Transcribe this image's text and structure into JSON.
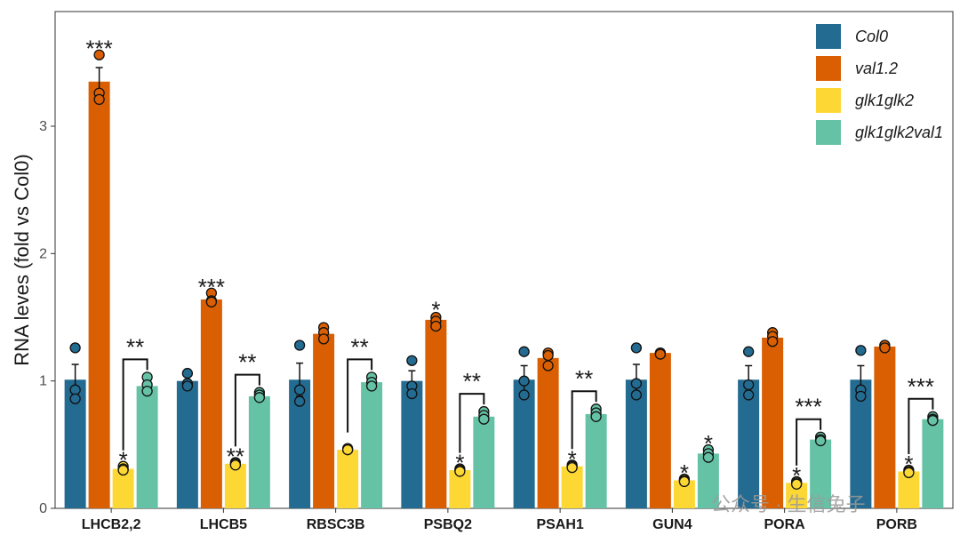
{
  "chart_data": {
    "type": "bar",
    "title": "",
    "xlabel": "",
    "ylabel": "RNA leves (fold vs Col0)",
    "ylim": [
      0,
      3.9
    ],
    "yticks": [
      "0",
      "1",
      "2",
      "3"
    ],
    "grid": false,
    "legend_position": "top-right",
    "categories": [
      "LHCB2,2",
      "LHCB5",
      "RBSC3B",
      "PSBQ2",
      "PSAH1",
      "GUN4",
      "PORA",
      "PORB"
    ],
    "series": [
      {
        "name": "Col0",
        "color": "#236B91",
        "values": [
          1.01,
          1.0,
          1.01,
          1.0,
          1.01,
          1.01,
          1.01,
          1.01
        ],
        "errors": [
          0.12,
          0.05,
          0.13,
          0.08,
          0.11,
          0.12,
          0.11,
          0.11
        ],
        "points": [
          [
            1.26,
            0.93,
            0.86
          ],
          [
            1.06,
            0.98,
            0.96
          ],
          [
            1.28,
            0.93,
            0.84
          ],
          [
            1.16,
            0.96,
            0.9
          ],
          [
            1.23,
            1.0,
            0.89
          ],
          [
            1.26,
            0.98,
            0.89
          ],
          [
            1.23,
            0.97,
            0.89
          ],
          [
            1.24,
            0.93,
            0.88
          ]
        ]
      },
      {
        "name": "val1.2",
        "color": "#D95F02",
        "values": [
          3.35,
          1.64,
          1.37,
          1.48,
          1.18,
          1.22,
          1.34,
          1.27
        ],
        "errors": [
          0.11,
          0.02,
          0.04,
          0.03,
          0.04,
          0.01,
          0.03,
          0.01
        ],
        "points": [
          [
            3.56,
            3.26,
            3.21
          ],
          [
            1.69,
            1.63,
            1.62
          ],
          [
            1.42,
            1.38,
            1.33
          ],
          [
            1.5,
            1.47,
            1.43
          ],
          [
            1.22,
            1.2,
            1.12
          ],
          [
            1.22,
            1.22,
            1.21
          ],
          [
            1.38,
            1.35,
            1.31
          ],
          [
            1.28,
            1.28,
            1.26
          ]
        ]
      },
      {
        "name": "glk1glk2",
        "color": "#FDD835",
        "values": [
          0.31,
          0.35,
          0.46,
          0.3,
          0.33,
          0.22,
          0.2,
          0.29
        ],
        "errors": [
          0.01,
          0.01,
          0.01,
          0.01,
          0.01,
          0.01,
          0.01,
          0.01
        ],
        "points": [
          [
            0.33,
            0.31,
            0.3
          ],
          [
            0.36,
            0.35,
            0.34
          ],
          [
            0.47,
            0.46,
            0.46
          ],
          [
            0.31,
            0.3,
            0.29
          ],
          [
            0.34,
            0.33,
            0.32
          ],
          [
            0.23,
            0.22,
            0.21
          ],
          [
            0.21,
            0.2,
            0.19
          ],
          [
            0.3,
            0.29,
            0.28
          ]
        ]
      },
      {
        "name": "glk1glk2val1",
        "color": "#66C2A5",
        "values": [
          0.96,
          0.88,
          0.99,
          0.72,
          0.74,
          0.43,
          0.54,
          0.7
        ],
        "errors": [
          0.03,
          0.02,
          0.02,
          0.02,
          0.02,
          0.02,
          0.01,
          0.01
        ],
        "points": [
          [
            1.03,
            0.97,
            0.92
          ],
          [
            0.91,
            0.89,
            0.87
          ],
          [
            1.03,
            0.99,
            0.96
          ],
          [
            0.76,
            0.73,
            0.7
          ],
          [
            0.78,
            0.75,
            0.72
          ],
          [
            0.46,
            0.43,
            0.4
          ],
          [
            0.56,
            0.54,
            0.53
          ],
          [
            0.72,
            0.7,
            0.69
          ]
        ]
      }
    ],
    "significance": [
      {
        "category": 0,
        "series": 1,
        "label": "***"
      },
      {
        "category": 0,
        "series": 2,
        "label": "*"
      },
      {
        "category": 0,
        "bracket": [
          2,
          3
        ],
        "label": "**"
      },
      {
        "category": 1,
        "series": 1,
        "label": "***"
      },
      {
        "category": 1,
        "series": 2,
        "label": "**"
      },
      {
        "category": 1,
        "bracket": [
          2,
          3
        ],
        "label": "**"
      },
      {
        "category": 2,
        "bracket": [
          2,
          3
        ],
        "label": "**"
      },
      {
        "category": 3,
        "series": 1,
        "label": "*"
      },
      {
        "category": 3,
        "series": 2,
        "label": "*"
      },
      {
        "category": 3,
        "bracket": [
          2,
          3
        ],
        "label": "**"
      },
      {
        "category": 4,
        "series": 2,
        "label": "*"
      },
      {
        "category": 4,
        "bracket": [
          2,
          3
        ],
        "label": "**"
      },
      {
        "category": 5,
        "series": 2,
        "label": "*"
      },
      {
        "category": 5,
        "series": 3,
        "label": "*"
      },
      {
        "category": 6,
        "series": 2,
        "label": "*"
      },
      {
        "category": 6,
        "bracket": [
          2,
          3
        ],
        "label": "***"
      },
      {
        "category": 7,
        "series": 2,
        "label": "*"
      },
      {
        "category": 7,
        "bracket": [
          2,
          3
        ],
        "label": "***"
      }
    ]
  },
  "watermark": "公众号 · 生信兔子"
}
